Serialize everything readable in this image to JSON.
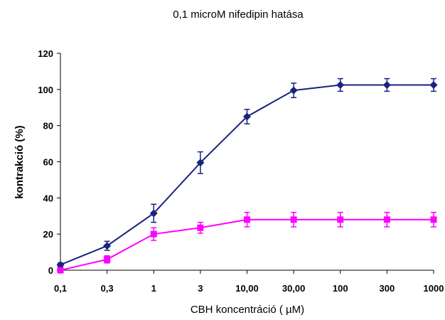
{
  "chart_data": {
    "type": "line",
    "title": "0,1 microM nifedipin hatása",
    "xlabel": "CBH koncentráció ( µM)",
    "ylabel": "kontrakció (%)",
    "categories": [
      "0,1",
      "0,3",
      "1",
      "3",
      "10,00",
      "30,00",
      "100",
      "300",
      "1000"
    ],
    "ylim": [
      0,
      120
    ],
    "yticks": [
      0,
      20,
      40,
      60,
      80,
      100,
      120
    ],
    "grid": false,
    "legend": "none",
    "series": [
      {
        "color": "#1a237e",
        "marker": "diamond",
        "values": [
          3,
          13.5,
          31.5,
          59.5,
          85,
          99.5,
          102.5,
          102.5,
          102.5
        ],
        "errors": [
          1,
          2.5,
          5,
          6,
          4,
          4,
          3.5,
          3.5,
          3.5
        ]
      },
      {
        "color": "#ff00ff",
        "marker": "square",
        "values": [
          0,
          6,
          20,
          23.5,
          28,
          28,
          28,
          28,
          28
        ],
        "errors": [
          0.5,
          2,
          3.5,
          3,
          4,
          4,
          4,
          4,
          4
        ]
      }
    ]
  }
}
